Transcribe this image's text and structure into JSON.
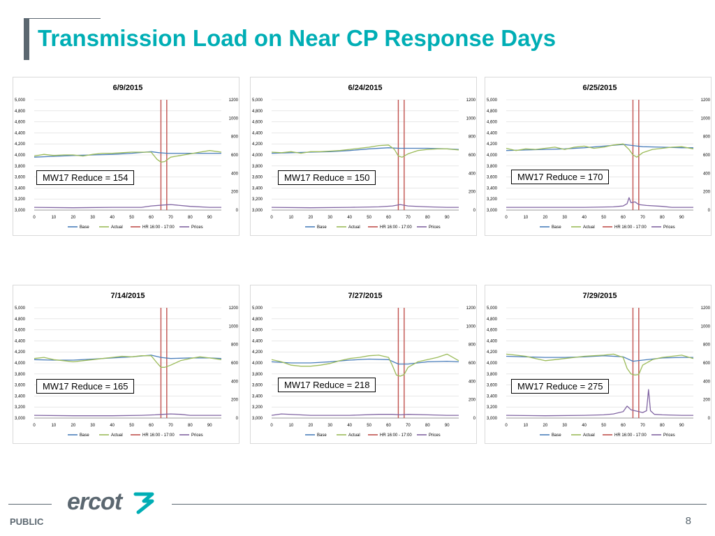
{
  "slide": {
    "title": "Transmission Load on Near CP Response Days",
    "footer_label": "PUBLIC",
    "page_number": "8",
    "logo_text": "ercot",
    "colors": {
      "title": "#00aeb5",
      "footer": "#5b6770"
    }
  },
  "chart_data": [
    {
      "type": "line",
      "title": "6/9/2015",
      "reduce_label": "MW17 Reduce = 154",
      "x": [
        0,
        10,
        20,
        30,
        40,
        50,
        60,
        70,
        80,
        90
      ],
      "xlim": [
        0,
        96
      ],
      "ylim": [
        3000,
        5000
      ],
      "y2lim": [
        0,
        1200
      ],
      "yticks": [
        "5,000",
        "4,800",
        "4,600",
        "4,400",
        "4,200",
        "4,000",
        "3,800",
        "3,600",
        "3,400",
        "3,200",
        "3,000"
      ],
      "y2ticks": [
        "1200",
        "1000",
        "800",
        "600",
        "400",
        "200",
        "0"
      ],
      "legend": [
        "Base",
        "Actual",
        "HR 16:00 - 17:00",
        "Prices"
      ],
      "hr_lines": [
        65,
        68
      ],
      "series": [
        {
          "name": "Base",
          "color": "#4a7ebb",
          "x": [
            0,
            10,
            20,
            30,
            40,
            50,
            60,
            64,
            68,
            75,
            85,
            96
          ],
          "values": [
            3960,
            3975,
            3990,
            4000,
            4010,
            4030,
            4060,
            4040,
            4030,
            4030,
            4030,
            4030
          ]
        },
        {
          "name": "Actual",
          "color": "#9bbb59",
          "x": [
            0,
            5,
            10,
            15,
            20,
            25,
            30,
            35,
            40,
            45,
            50,
            55,
            60,
            63,
            65,
            67,
            70,
            75,
            80,
            85,
            90,
            96
          ],
          "values": [
            3980,
            4010,
            3990,
            4000,
            4000,
            3980,
            4010,
            4030,
            4030,
            4040,
            4050,
            4050,
            4050,
            3920,
            3870,
            3880,
            3960,
            3990,
            4020,
            4050,
            4080,
            4050
          ]
        },
        {
          "name": "Prices",
          "color": "#8064a2",
          "x": [
            0,
            20,
            40,
            55,
            60,
            66,
            70,
            80,
            90,
            96
          ],
          "values": [
            30,
            25,
            30,
            30,
            45,
            55,
            60,
            40,
            30,
            30
          ]
        }
      ]
    },
    {
      "type": "line",
      "title": "6/24/2015",
      "reduce_label": "MW17 Reduce = 150",
      "x": [
        0,
        10,
        20,
        30,
        40,
        50,
        60,
        70,
        80,
        90
      ],
      "xlim": [
        0,
        96
      ],
      "ylim": [
        3000,
        5000
      ],
      "y2lim": [
        0,
        1200
      ],
      "yticks": [
        "5,000",
        "4,800",
        "4,600",
        "4,400",
        "4,200",
        "4,000",
        "3,800",
        "3,600",
        "3,400",
        "3,200",
        "3,000"
      ],
      "y2ticks": [
        "1200",
        "1000",
        "800",
        "600",
        "400",
        "200",
        "0"
      ],
      "legend": [
        "Base",
        "Actual",
        "HR 16:00 - 17:00",
        "Prices"
      ],
      "hr_lines": [
        65,
        68
      ],
      "series": [
        {
          "name": "Base",
          "color": "#4a7ebb",
          "x": [
            0,
            10,
            20,
            30,
            40,
            50,
            60,
            65,
            70,
            80,
            90,
            96
          ],
          "values": [
            4030,
            4040,
            4050,
            4060,
            4080,
            4110,
            4130,
            4120,
            4120,
            4120,
            4110,
            4100
          ]
        },
        {
          "name": "Actual",
          "color": "#9bbb59",
          "x": [
            0,
            5,
            10,
            15,
            20,
            25,
            30,
            35,
            40,
            45,
            50,
            55,
            60,
            63,
            65,
            67,
            70,
            75,
            80,
            85,
            90,
            96
          ],
          "values": [
            4050,
            4040,
            4060,
            4030,
            4060,
            4060,
            4070,
            4080,
            4100,
            4120,
            4140,
            4170,
            4180,
            4100,
            3980,
            3960,
            4020,
            4080,
            4100,
            4110,
            4110,
            4090
          ]
        },
        {
          "name": "Prices",
          "color": "#8064a2",
          "x": [
            0,
            20,
            40,
            55,
            62,
            66,
            70,
            80,
            90,
            96
          ],
          "values": [
            30,
            25,
            30,
            35,
            45,
            60,
            45,
            35,
            30,
            30
          ]
        }
      ]
    },
    {
      "type": "line",
      "title": "6/25/2015",
      "reduce_label": "MW17 Reduce = 170",
      "x": [
        0,
        10,
        20,
        30,
        40,
        50,
        60,
        70,
        80,
        90
      ],
      "xlim": [
        0,
        96
      ],
      "ylim": [
        3000,
        5000
      ],
      "y2lim": [
        0,
        1200
      ],
      "yticks": [
        "5,000",
        "4,800",
        "4,600",
        "4,400",
        "4,200",
        "4,000",
        "3,800",
        "3,600",
        "3,400",
        "3,200",
        "3,000"
      ],
      "y2ticks": [
        "1200",
        "1000",
        "800",
        "600",
        "400",
        "200",
        "0"
      ],
      "legend": [
        "Base",
        "Actual",
        "HR 16:00 - 17:00",
        "Prices"
      ],
      "hr_lines": [
        65,
        68
      ],
      "series": [
        {
          "name": "Base",
          "color": "#4a7ebb",
          "x": [
            0,
            10,
            20,
            30,
            40,
            50,
            60,
            65,
            70,
            80,
            90,
            96
          ],
          "values": [
            4080,
            4090,
            4100,
            4110,
            4130,
            4160,
            4190,
            4170,
            4150,
            4140,
            4130,
            4130
          ]
        },
        {
          "name": "Actual",
          "color": "#9bbb59",
          "x": [
            0,
            5,
            10,
            15,
            20,
            25,
            30,
            35,
            40,
            45,
            50,
            55,
            60,
            63,
            65,
            67,
            70,
            75,
            80,
            85,
            90,
            96
          ],
          "values": [
            4120,
            4080,
            4110,
            4100,
            4120,
            4140,
            4100,
            4140,
            4160,
            4120,
            4140,
            4180,
            4200,
            4100,
            4000,
            3960,
            4040,
            4100,
            4120,
            4140,
            4150,
            4110
          ]
        },
        {
          "name": "Prices",
          "color": "#8064a2",
          "x": [
            0,
            20,
            40,
            55,
            60,
            62,
            63,
            64,
            66,
            68,
            72,
            80,
            85,
            90,
            96
          ],
          "values": [
            30,
            30,
            30,
            35,
            45,
            70,
            135,
            80,
            90,
            60,
            50,
            40,
            30,
            30,
            30
          ]
        }
      ]
    },
    {
      "type": "line",
      "title": "7/14/2015",
      "reduce_label": "MW17 Reduce = 165",
      "x": [
        0,
        10,
        20,
        30,
        40,
        50,
        60,
        70,
        80,
        90
      ],
      "xlim": [
        0,
        96
      ],
      "ylim": [
        3000,
        5000
      ],
      "y2lim": [
        0,
        1200
      ],
      "yticks": [
        "5,000",
        "4,800",
        "4,600",
        "4,400",
        "4,200",
        "4,000",
        "3,800",
        "3,600",
        "3,400",
        "3,200",
        "3,000"
      ],
      "y2ticks": [
        "1200",
        "1000",
        "800",
        "600",
        "400",
        "200",
        "0"
      ],
      "legend": [
        "Base",
        "Actual",
        "HR 16:00 - 17:00",
        "Prices"
      ],
      "hr_lines": [
        65,
        68
      ],
      "series": [
        {
          "name": "Base",
          "color": "#4a7ebb",
          "x": [
            0,
            10,
            20,
            30,
            40,
            50,
            60,
            65,
            70,
            80,
            90,
            96
          ],
          "values": [
            4060,
            4050,
            4050,
            4070,
            4090,
            4110,
            4140,
            4100,
            4080,
            4090,
            4090,
            4080
          ]
        },
        {
          "name": "Actual",
          "color": "#9bbb59",
          "x": [
            0,
            5,
            10,
            15,
            20,
            25,
            30,
            35,
            40,
            45,
            50,
            55,
            60,
            63,
            65,
            67,
            70,
            75,
            80,
            85,
            90,
            96
          ],
          "values": [
            4080,
            4100,
            4060,
            4040,
            4020,
            4040,
            4060,
            4080,
            4100,
            4120,
            4110,
            4130,
            4130,
            4000,
            3920,
            3920,
            3960,
            4040,
            4080,
            4110,
            4090,
            4060
          ]
        },
        {
          "name": "Prices",
          "color": "#8064a2",
          "x": [
            0,
            20,
            40,
            55,
            62,
            66,
            70,
            75,
            80,
            90,
            96
          ],
          "values": [
            30,
            25,
            25,
            30,
            35,
            40,
            45,
            40,
            30,
            30,
            30
          ]
        }
      ]
    },
    {
      "type": "line",
      "title": "7/27/2015",
      "reduce_label": "MW17 Reduce = 218",
      "x": [
        0,
        10,
        20,
        30,
        40,
        50,
        60,
        70,
        80,
        90
      ],
      "xlim": [
        0,
        96
      ],
      "ylim": [
        3000,
        5000
      ],
      "y2lim": [
        0,
        1200
      ],
      "yticks": [
        "5,000",
        "4,800",
        "4,600",
        "4,400",
        "4,200",
        "4,000",
        "3,800",
        "3,600",
        "3,400",
        "3,200",
        "3,000"
      ],
      "y2ticks": [
        "1200",
        "1000",
        "800",
        "600",
        "400",
        "200",
        "0"
      ],
      "legend": [
        "Base",
        "Actual",
        "HR 16:00 - 17:00",
        "Prices"
      ],
      "hr_lines": [
        65,
        68
      ],
      "series": [
        {
          "name": "Base",
          "color": "#4a7ebb",
          "x": [
            0,
            10,
            20,
            30,
            40,
            50,
            60,
            65,
            70,
            80,
            90,
            96
          ],
          "values": [
            4020,
            4000,
            4000,
            4020,
            4050,
            4070,
            4060,
            3980,
            3980,
            4020,
            4030,
            4020
          ]
        },
        {
          "name": "Actual",
          "color": "#9bbb59",
          "x": [
            0,
            5,
            10,
            15,
            20,
            25,
            30,
            35,
            40,
            45,
            50,
            55,
            60,
            62,
            64,
            66,
            68,
            70,
            75,
            80,
            85,
            90,
            96
          ],
          "values": [
            4060,
            4020,
            3960,
            3940,
            3940,
            3960,
            3990,
            4040,
            4080,
            4100,
            4130,
            4140,
            4100,
            3950,
            3780,
            3760,
            3790,
            3920,
            4020,
            4060,
            4100,
            4160,
            4040
          ]
        },
        {
          "name": "Prices",
          "color": "#8064a2",
          "x": [
            0,
            5,
            20,
            40,
            55,
            62,
            66,
            70,
            80,
            90,
            96
          ],
          "values": [
            30,
            45,
            30,
            30,
            40,
            40,
            35,
            40,
            35,
            30,
            30
          ]
        }
      ]
    },
    {
      "type": "line",
      "title": "7/29/2015",
      "reduce_label": "MW17 Reduce = 275",
      "x": [
        0,
        10,
        20,
        30,
        40,
        50,
        60,
        70,
        80,
        90
      ],
      "xlim": [
        0,
        96
      ],
      "ylim": [
        3000,
        5000
      ],
      "y2lim": [
        0,
        1200
      ],
      "yticks": [
        "5,000",
        "4,800",
        "4,600",
        "4,400",
        "4,200",
        "4,000",
        "3,800",
        "3,600",
        "3,400",
        "3,200",
        "3,000"
      ],
      "y2ticks": [
        "1200",
        "1000",
        "800",
        "600",
        "400",
        "200",
        "0"
      ],
      "legend": [
        "Base",
        "Actual",
        "HR 16:00 - 17:00",
        "Prices"
      ],
      "hr_lines": [
        65,
        68
      ],
      "series": [
        {
          "name": "Base",
          "color": "#4a7ebb",
          "x": [
            0,
            10,
            20,
            30,
            40,
            50,
            60,
            65,
            70,
            80,
            90,
            96
          ],
          "values": [
            4120,
            4110,
            4100,
            4100,
            4110,
            4130,
            4110,
            4030,
            4050,
            4090,
            4100,
            4100
          ]
        },
        {
          "name": "Actual",
          "color": "#9bbb59",
          "x": [
            0,
            5,
            10,
            15,
            20,
            25,
            30,
            35,
            40,
            45,
            50,
            55,
            60,
            62,
            64,
            66,
            68,
            70,
            75,
            80,
            85,
            90,
            96
          ],
          "values": [
            4160,
            4140,
            4120,
            4080,
            4040,
            4060,
            4080,
            4100,
            4120,
            4130,
            4140,
            4160,
            4100,
            3900,
            3800,
            3780,
            3790,
            3960,
            4060,
            4100,
            4120,
            4140,
            4080
          ]
        },
        {
          "name": "Prices",
          "color": "#8064a2",
          "x": [
            0,
            20,
            40,
            50,
            55,
            60,
            62,
            64,
            66,
            68,
            70,
            72,
            73,
            74,
            76,
            80,
            90,
            96
          ],
          "values": [
            30,
            25,
            30,
            35,
            45,
            70,
            130,
            90,
            80,
            70,
            60,
            80,
            310,
            80,
            40,
            35,
            30,
            30
          ]
        }
      ]
    }
  ]
}
